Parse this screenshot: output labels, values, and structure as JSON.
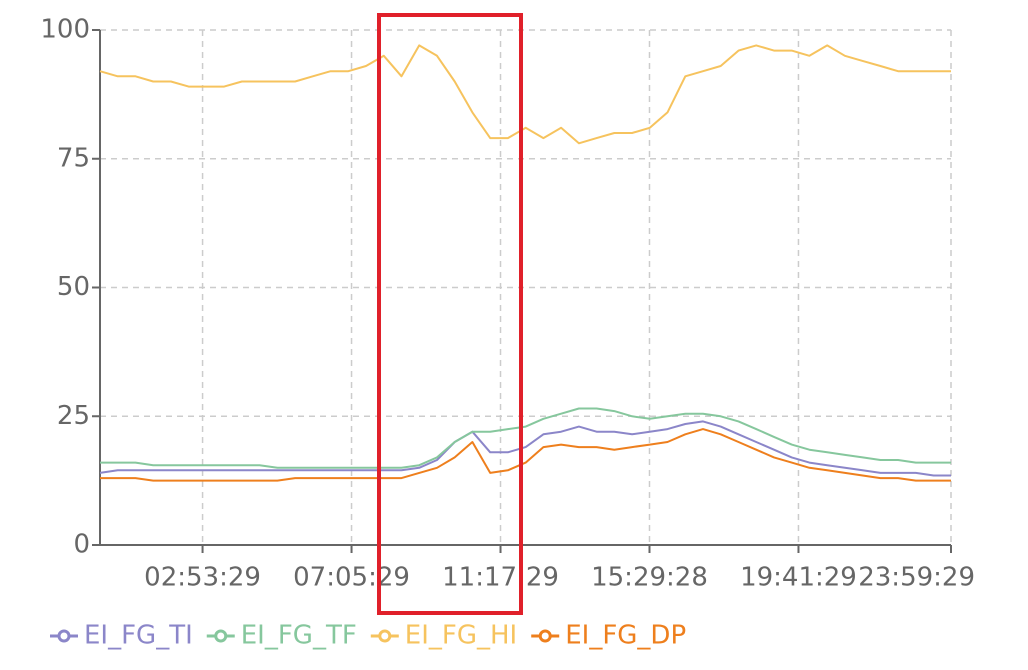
{
  "chart_data": {
    "type": "line",
    "x": [
      "00:00:00",
      "00:30:00",
      "01:00:00",
      "01:30:00",
      "02:00:00",
      "02:30:00",
      "03:00:00",
      "03:30:00",
      "04:00:00",
      "04:30:00",
      "05:00:00",
      "05:30:00",
      "06:00:00",
      "06:30:00",
      "07:00:00",
      "07:30:00",
      "08:00:00",
      "08:30:00",
      "09:00:00",
      "09:30:00",
      "10:00:00",
      "10:30:00",
      "11:00:00",
      "11:30:00",
      "12:00:00",
      "12:30:00",
      "13:00:00",
      "13:30:00",
      "14:00:00",
      "14:30:00",
      "15:00:00",
      "15:30:00",
      "16:00:00",
      "16:30:00",
      "17:00:00",
      "17:30:00",
      "18:00:00",
      "18:30:00",
      "19:00:00",
      "19:30:00",
      "20:00:00",
      "20:30:00",
      "21:00:00",
      "21:30:00",
      "22:00:00",
      "22:30:00",
      "23:00:00",
      "23:30:00",
      "23:59:29"
    ],
    "series": [
      {
        "name": "EI_FG_TI",
        "color": "#8b86c9",
        "values": [
          14,
          14.5,
          14.5,
          14.5,
          14.5,
          14.5,
          14.5,
          14.5,
          14.5,
          14.5,
          14.5,
          14.5,
          14.5,
          14.5,
          14.5,
          14.5,
          14.5,
          14.5,
          15,
          16.5,
          20,
          22,
          18,
          18,
          19,
          21.5,
          22,
          23,
          22,
          22,
          21.5,
          22,
          22.5,
          23.5,
          24,
          23,
          21.5,
          20,
          18.5,
          17,
          16,
          15.5,
          15,
          14.5,
          14,
          14,
          14,
          13.5,
          13.5
        ]
      },
      {
        "name": "EI_FG_TF",
        "color": "#86c79d",
        "values": [
          16,
          16,
          16,
          15.5,
          15.5,
          15.5,
          15.5,
          15.5,
          15.5,
          15.5,
          15,
          15,
          15,
          15,
          15,
          15,
          15,
          15,
          15.5,
          17,
          20,
          22,
          22,
          22.5,
          23,
          24.5,
          25.5,
          26.5,
          26.5,
          26,
          25,
          24.5,
          25,
          25.5,
          25.5,
          25,
          24,
          22.5,
          21,
          19.5,
          18.5,
          18,
          17.5,
          17,
          16.5,
          16.5,
          16,
          16,
          16
        ]
      },
      {
        "name": "EI_FG_HI",
        "color": "#f6c35e",
        "values": [
          92,
          91,
          91,
          90,
          90,
          89,
          89,
          89,
          90,
          90,
          90,
          90,
          91,
          92,
          92,
          93,
          95,
          91,
          97,
          95,
          90,
          84,
          79,
          79,
          81,
          79,
          81,
          78,
          79,
          80,
          80,
          81,
          84,
          91,
          92,
          93,
          96,
          97,
          96,
          96,
          95,
          97,
          95,
          94,
          93,
          92,
          92,
          92,
          92
        ]
      },
      {
        "name": "EI_FG_DP",
        "color": "#ee7f1d",
        "values": [
          13,
          13,
          13,
          12.5,
          12.5,
          12.5,
          12.5,
          12.5,
          12.5,
          12.5,
          12.5,
          13,
          13,
          13,
          13,
          13,
          13,
          13,
          14,
          15,
          17,
          20,
          14,
          14.5,
          16,
          19,
          19.5,
          19,
          19,
          18.5,
          19,
          19.5,
          20,
          21.5,
          22.5,
          21.5,
          20,
          18.5,
          17,
          16,
          15,
          14.5,
          14,
          13.5,
          13,
          13,
          12.5,
          12.5,
          12.5
        ]
      }
    ],
    "xlim": [
      "00:00:00",
      "23:59:29"
    ],
    "xticks": [
      "02:53:29",
      "07:05:29",
      "11:17:29",
      "15:29:28",
      "19:41:29",
      "23:59:29"
    ],
    "ylim": [
      0,
      100
    ],
    "yticks": [
      0,
      25,
      50,
      75,
      100
    ],
    "grid": true,
    "legend": "bottom"
  }
}
